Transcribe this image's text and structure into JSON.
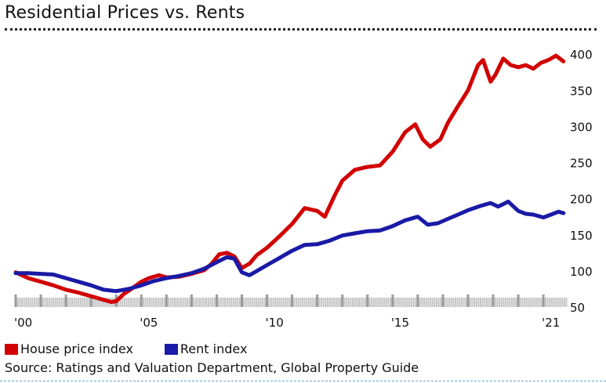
{
  "chart_data": {
    "type": "line",
    "title": "Residential Prices vs. Rents",
    "source": "Source: Ratings and Valuation Department, Global Property Guide",
    "xlim": [
      2000.0,
      2021.9
    ],
    "ylim": [
      50,
      410
    ],
    "y_ticks": [
      50,
      100,
      150,
      200,
      250,
      300,
      350,
      400
    ],
    "x_ticks": [
      {
        "value": 2000,
        "label": "'00"
      },
      {
        "value": 2005,
        "label": "'05"
      },
      {
        "value": 2010,
        "label": "'10"
      },
      {
        "value": 2015,
        "label": "'15"
      },
      {
        "value": 2021,
        "label": "'21"
      }
    ],
    "grid": false,
    "legend_position": "bottom-left",
    "series": [
      {
        "name": "House price index",
        "color": "#d20000",
        "points": [
          [
            2000.0,
            98
          ],
          [
            2000.5,
            90
          ],
          [
            2001.0,
            85
          ],
          [
            2001.5,
            80
          ],
          [
            2002.0,
            74
          ],
          [
            2002.5,
            70
          ],
          [
            2003.0,
            65
          ],
          [
            2003.5,
            60
          ],
          [
            2003.8,
            57
          ],
          [
            2004.0,
            58
          ],
          [
            2004.3,
            68
          ],
          [
            2004.6,
            75
          ],
          [
            2005.0,
            85
          ],
          [
            2005.3,
            90
          ],
          [
            2005.7,
            94
          ],
          [
            2006.0,
            91
          ],
          [
            2006.5,
            92
          ],
          [
            2007.0,
            96
          ],
          [
            2007.5,
            101
          ],
          [
            2007.8,
            110
          ],
          [
            2008.1,
            123
          ],
          [
            2008.4,
            125
          ],
          [
            2008.7,
            120
          ],
          [
            2009.0,
            104
          ],
          [
            2009.3,
            110
          ],
          [
            2009.6,
            122
          ],
          [
            2010.0,
            132
          ],
          [
            2010.5,
            148
          ],
          [
            2011.0,
            165
          ],
          [
            2011.5,
            187
          ],
          [
            2012.0,
            183
          ],
          [
            2012.3,
            175
          ],
          [
            2012.7,
            205
          ],
          [
            2013.0,
            225
          ],
          [
            2013.5,
            240
          ],
          [
            2014.0,
            244
          ],
          [
            2014.5,
            246
          ],
          [
            2015.0,
            265
          ],
          [
            2015.5,
            292
          ],
          [
            2015.9,
            303
          ],
          [
            2016.2,
            282
          ],
          [
            2016.5,
            272
          ],
          [
            2016.9,
            282
          ],
          [
            2017.2,
            305
          ],
          [
            2017.6,
            328
          ],
          [
            2018.0,
            350
          ],
          [
            2018.4,
            385
          ],
          [
            2018.6,
            392
          ],
          [
            2018.9,
            362
          ],
          [
            2019.1,
            372
          ],
          [
            2019.4,
            394
          ],
          [
            2019.7,
            385
          ],
          [
            2020.0,
            382
          ],
          [
            2020.3,
            385
          ],
          [
            2020.6,
            380
          ],
          [
            2020.9,
            388
          ],
          [
            2021.2,
            392
          ],
          [
            2021.5,
            398
          ],
          [
            2021.8,
            390
          ]
        ]
      },
      {
        "name": "Rent index",
        "color": "#1a1aa6",
        "points": [
          [
            2000.0,
            97
          ],
          [
            2000.5,
            97
          ],
          [
            2001.0,
            96
          ],
          [
            2001.5,
            95
          ],
          [
            2002.0,
            90
          ],
          [
            2002.5,
            85
          ],
          [
            2003.0,
            80
          ],
          [
            2003.5,
            74
          ],
          [
            2004.0,
            72
          ],
          [
            2004.5,
            75
          ],
          [
            2005.0,
            80
          ],
          [
            2005.5,
            86
          ],
          [
            2006.0,
            90
          ],
          [
            2006.5,
            93
          ],
          [
            2007.0,
            97
          ],
          [
            2007.5,
            103
          ],
          [
            2008.0,
            112
          ],
          [
            2008.4,
            119
          ],
          [
            2008.7,
            117
          ],
          [
            2009.0,
            98
          ],
          [
            2009.3,
            94
          ],
          [
            2009.6,
            100
          ],
          [
            2010.0,
            108
          ],
          [
            2010.5,
            118
          ],
          [
            2011.0,
            128
          ],
          [
            2011.5,
            136
          ],
          [
            2012.0,
            137
          ],
          [
            2012.5,
            142
          ],
          [
            2013.0,
            149
          ],
          [
            2013.5,
            152
          ],
          [
            2014.0,
            155
          ],
          [
            2014.5,
            156
          ],
          [
            2015.0,
            162
          ],
          [
            2015.5,
            170
          ],
          [
            2016.0,
            175
          ],
          [
            2016.4,
            164
          ],
          [
            2016.8,
            166
          ],
          [
            2017.2,
            172
          ],
          [
            2017.6,
            178
          ],
          [
            2018.0,
            184
          ],
          [
            2018.5,
            190
          ],
          [
            2018.9,
            194
          ],
          [
            2019.2,
            189
          ],
          [
            2019.6,
            196
          ],
          [
            2020.0,
            183
          ],
          [
            2020.3,
            179
          ],
          [
            2020.6,
            178
          ],
          [
            2021.0,
            174
          ],
          [
            2021.3,
            178
          ],
          [
            2021.6,
            182
          ],
          [
            2021.8,
            180
          ]
        ]
      }
    ]
  }
}
